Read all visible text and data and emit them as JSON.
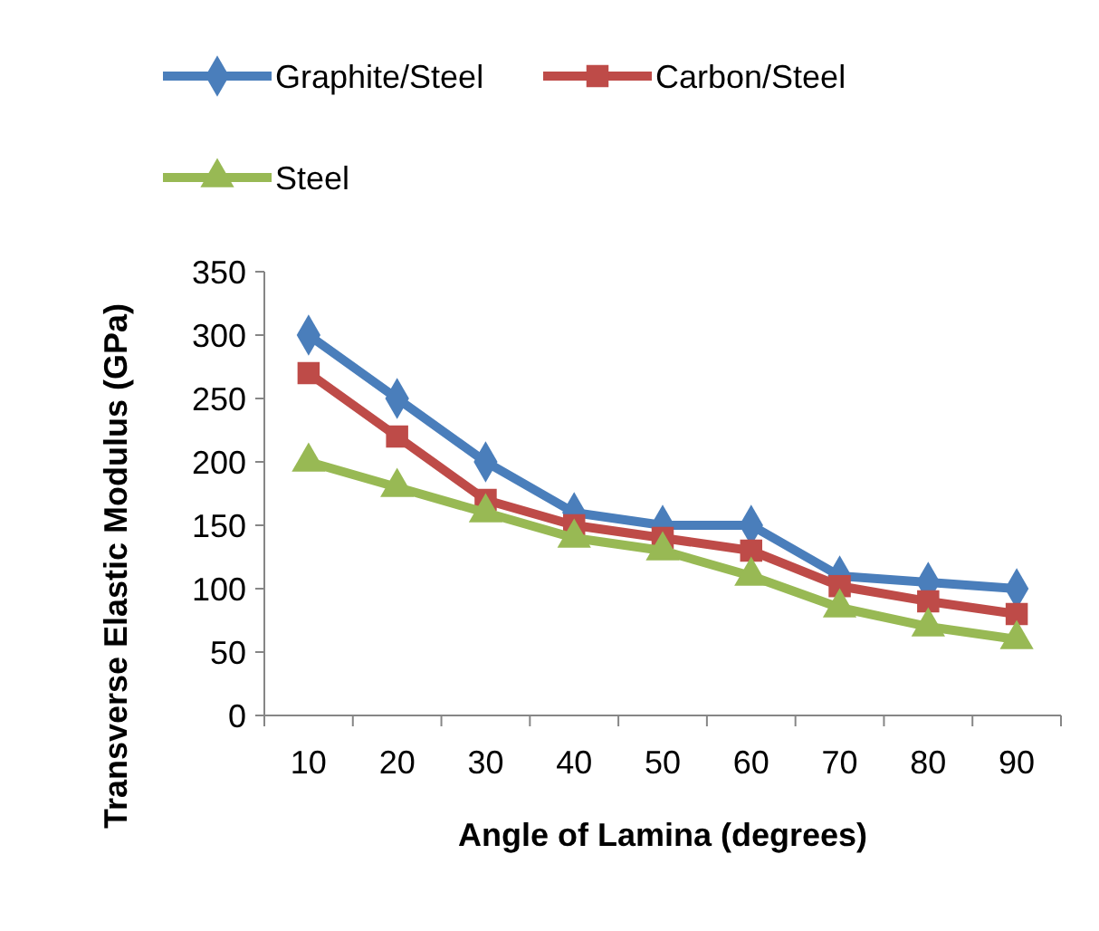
{
  "chart_data": {
    "type": "line",
    "xlabel": "Angle of Lamina (degrees)",
    "ylabel": "Transverse Elastic Modulus (GPa)",
    "categories": [
      "10",
      "20",
      "30",
      "40",
      "50",
      "60",
      "70",
      "80",
      "90"
    ],
    "series": [
      {
        "name": "Graphite/Steel",
        "color": "#4a7ebb",
        "marker": "diamond",
        "values": [
          300,
          250,
          200,
          160,
          150,
          150,
          110,
          105,
          100
        ]
      },
      {
        "name": "Carbon/Steel",
        "color": "#be4b48",
        "marker": "square",
        "values": [
          270,
          220,
          170,
          150,
          140,
          130,
          102,
          90,
          80
        ]
      },
      {
        "name": "Steel",
        "color": "#98b954",
        "marker": "triangle",
        "values": [
          200,
          180,
          160,
          140,
          130,
          110,
          85,
          70,
          60
        ]
      }
    ],
    "ylim": [
      0,
      350
    ],
    "yticks": [
      0,
      50,
      100,
      150,
      200,
      250,
      300,
      350
    ],
    "grid": false,
    "legend": "top"
  }
}
